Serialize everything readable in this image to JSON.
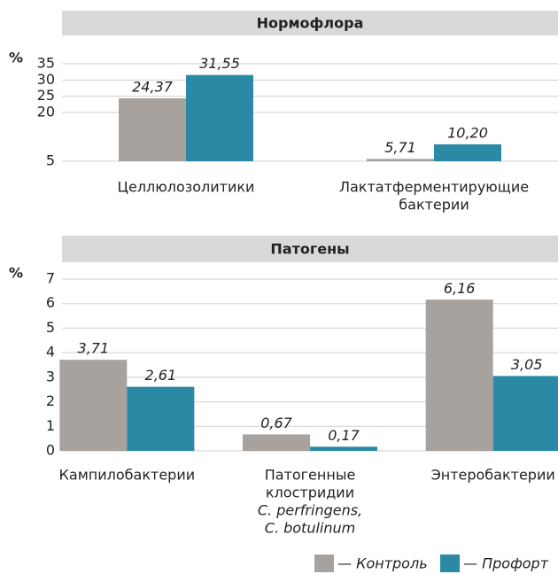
{
  "chart_data": [
    {
      "type": "bar",
      "title": "Нормофлора",
      "ylabel": "%",
      "categories": [
        [
          "Целлюлозолитики"
        ],
        [
          "Лактатферментирующие",
          "бактерии"
        ]
      ],
      "series": [
        {
          "name": "— Контроль",
          "color": "#a8a29e",
          "values": [
            24.37,
            5.71
          ],
          "value_labels": [
            "24,37",
            "5,71"
          ]
        },
        {
          "name": "— Профорт",
          "color": "#2a8aa6",
          "values": [
            31.55,
            10.2
          ],
          "value_labels": [
            "31,55",
            "10,20"
          ]
        }
      ],
      "ylim": [
        5,
        35
      ],
      "yticks": [
        5,
        20,
        25,
        30,
        35
      ],
      "grid": true
    },
    {
      "type": "bar",
      "title": "Патогены",
      "ylabel": "%",
      "categories": [
        [
          "Кампилобактерии"
        ],
        [
          "Патогенные",
          "клостридии",
          "C. perfringens,",
          "C. botulinum"
        ],
        [
          "Энтеробактерии"
        ]
      ],
      "series": [
        {
          "name": "— Контроль",
          "color": "#a8a29e",
          "values": [
            3.71,
            0.67,
            6.16
          ],
          "value_labels": [
            "3,71",
            "0,67",
            "6,16"
          ]
        },
        {
          "name": "— Профорт",
          "color": "#2a8aa6",
          "values": [
            2.61,
            0.17,
            3.05
          ],
          "value_labels": [
            "2,61",
            "0,17",
            "3,05"
          ]
        }
      ],
      "ylim": [
        0,
        7
      ],
      "yticks": [
        0,
        1,
        2,
        3,
        4,
        5,
        6,
        7
      ],
      "grid": true,
      "legend": "bottom-right"
    }
  ]
}
